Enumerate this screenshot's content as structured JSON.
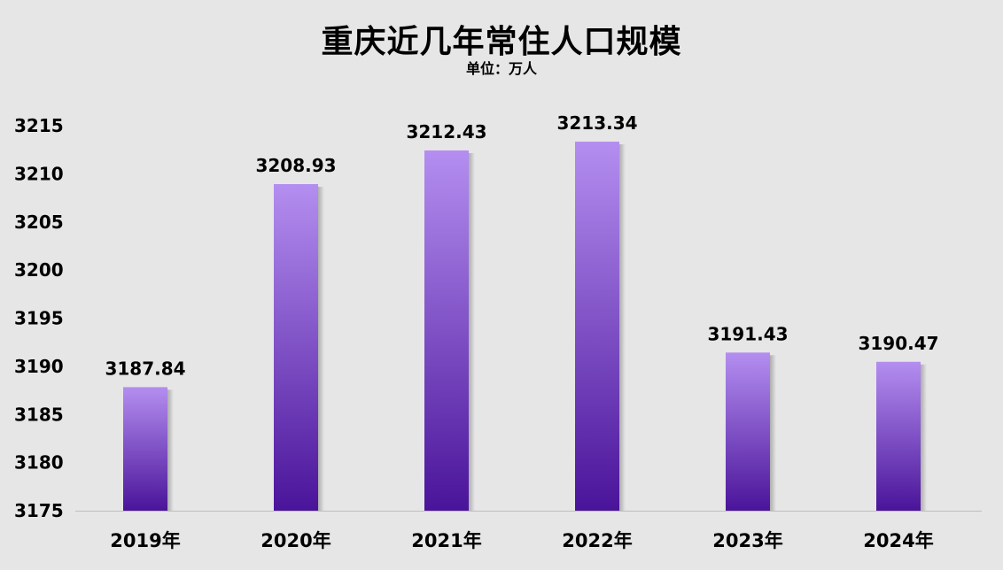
{
  "chart_data": {
    "type": "bar",
    "title": "重庆近几年常住人口规模",
    "subtitle": "单位：万人",
    "categories": [
      "2019年",
      "2020年",
      "2021年",
      "2022年",
      "2023年",
      "2024年"
    ],
    "values": [
      3187.84,
      3208.93,
      3212.43,
      3213.34,
      3191.43,
      3190.47
    ],
    "data_labels": [
      "3187.84",
      "3208.93",
      "3212.43",
      "3213.34",
      "3191.43",
      "3190.47"
    ],
    "yticks": [
      3175,
      3180,
      3185,
      3190,
      3195,
      3200,
      3205,
      3210,
      3215
    ],
    "ylim": [
      3175,
      3215
    ],
    "grid": false,
    "legend": "none",
    "colors": {
      "bar_top": "#b48ef0",
      "bar_bottom": "#4a149a",
      "background": "#e6e6e6",
      "axis": "#bfbfbf"
    }
  }
}
